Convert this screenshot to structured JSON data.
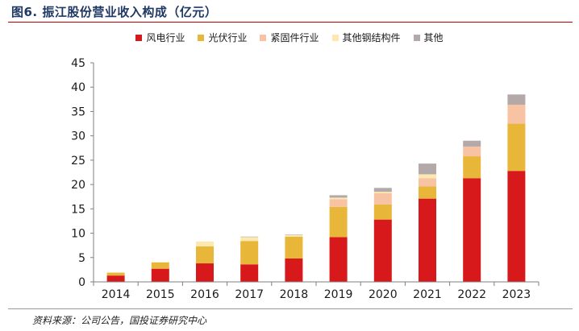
{
  "header": {
    "title": "图6. 振江股份营业收入构成（亿元）"
  },
  "footer": {
    "source": "资料来源：公司公告，国投证券研究中心"
  },
  "chart_data": {
    "type": "bar",
    "stacked": true,
    "title": "图6. 振江股份营业收入构成（亿元）",
    "xlabel": "",
    "ylabel": "",
    "ylim": [
      0,
      45
    ],
    "yticks": [
      0,
      5,
      10,
      15,
      20,
      25,
      30,
      35,
      40,
      45
    ],
    "grid": false,
    "legend_position": "top",
    "categories": [
      "2014",
      "2015",
      "2016",
      "2017",
      "2018",
      "2019",
      "2020",
      "2021",
      "2022",
      "2023"
    ],
    "series": [
      {
        "name": "风电行业",
        "color": "#d7191c",
        "values": [
          1.3,
          2.7,
          3.8,
          3.6,
          4.8,
          9.2,
          12.8,
          17.1,
          21.3,
          22.8
        ]
      },
      {
        "name": "光伏行业",
        "color": "#e8b73a",
        "values": [
          0.6,
          1.3,
          3.5,
          4.8,
          4.5,
          6.2,
          3.1,
          2.5,
          4.5,
          9.7
        ]
      },
      {
        "name": "紧固件行业",
        "color": "#f7c3a3",
        "values": [
          0.0,
          0.0,
          0.0,
          0.0,
          0.0,
          1.6,
          2.3,
          1.7,
          2.0,
          3.9
        ]
      },
      {
        "name": "其他钢结构件",
        "color": "#fde9b0",
        "values": [
          0.0,
          0.1,
          1.0,
          0.8,
          0.3,
          0.3,
          0.3,
          0.8,
          0.0,
          0.0
        ]
      },
      {
        "name": "其他",
        "color": "#b4a9a9",
        "values": [
          0.0,
          0.0,
          0.0,
          0.1,
          0.1,
          0.5,
          0.8,
          2.2,
          1.2,
          2.1
        ]
      }
    ]
  }
}
